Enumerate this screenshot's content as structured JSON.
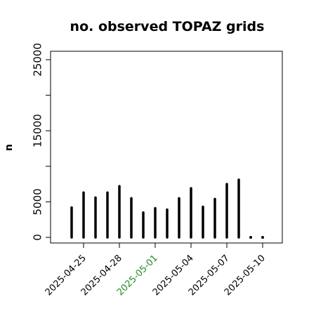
{
  "chart_data": {
    "type": "bar",
    "title": "no. observed TOPAZ grids",
    "ylabel": "n",
    "xlabel": "",
    "ylim": [
      0,
      26000
    ],
    "yticks": [
      0,
      5000,
      15000,
      25000
    ],
    "yticks_minor": [
      10000,
      20000
    ],
    "dates": [
      "2025-04-24",
      "2025-04-25",
      "2025-04-26",
      "2025-04-27",
      "2025-04-28",
      "2025-04-29",
      "2025-04-30",
      "2025-05-01",
      "2025-05-02",
      "2025-05-03",
      "2025-05-04",
      "2025-05-05",
      "2025-05-06",
      "2025-05-07",
      "2025-05-08",
      "2025-05-09",
      "2025-05-10"
    ],
    "values": [
      4200,
      6300,
      5600,
      6300,
      7200,
      5500,
      3500,
      4100,
      3900,
      5500,
      6900,
      4300,
      5400,
      7500,
      8100,
      0,
      0
    ],
    "xtick_labels": [
      {
        "label": "2025-04-25",
        "color": "#000000"
      },
      {
        "label": "2025-04-28",
        "color": "#000000"
      },
      {
        "label": "2025-05-01",
        "color": "#228B22"
      },
      {
        "label": "2025-05-04",
        "color": "#000000"
      },
      {
        "label": "2025-05-07",
        "color": "#000000"
      },
      {
        "label": "2025-05-10",
        "color": "#000000"
      }
    ],
    "grid": false,
    "colors": {
      "bars": "#000000",
      "highlight": "#228B22"
    }
  }
}
